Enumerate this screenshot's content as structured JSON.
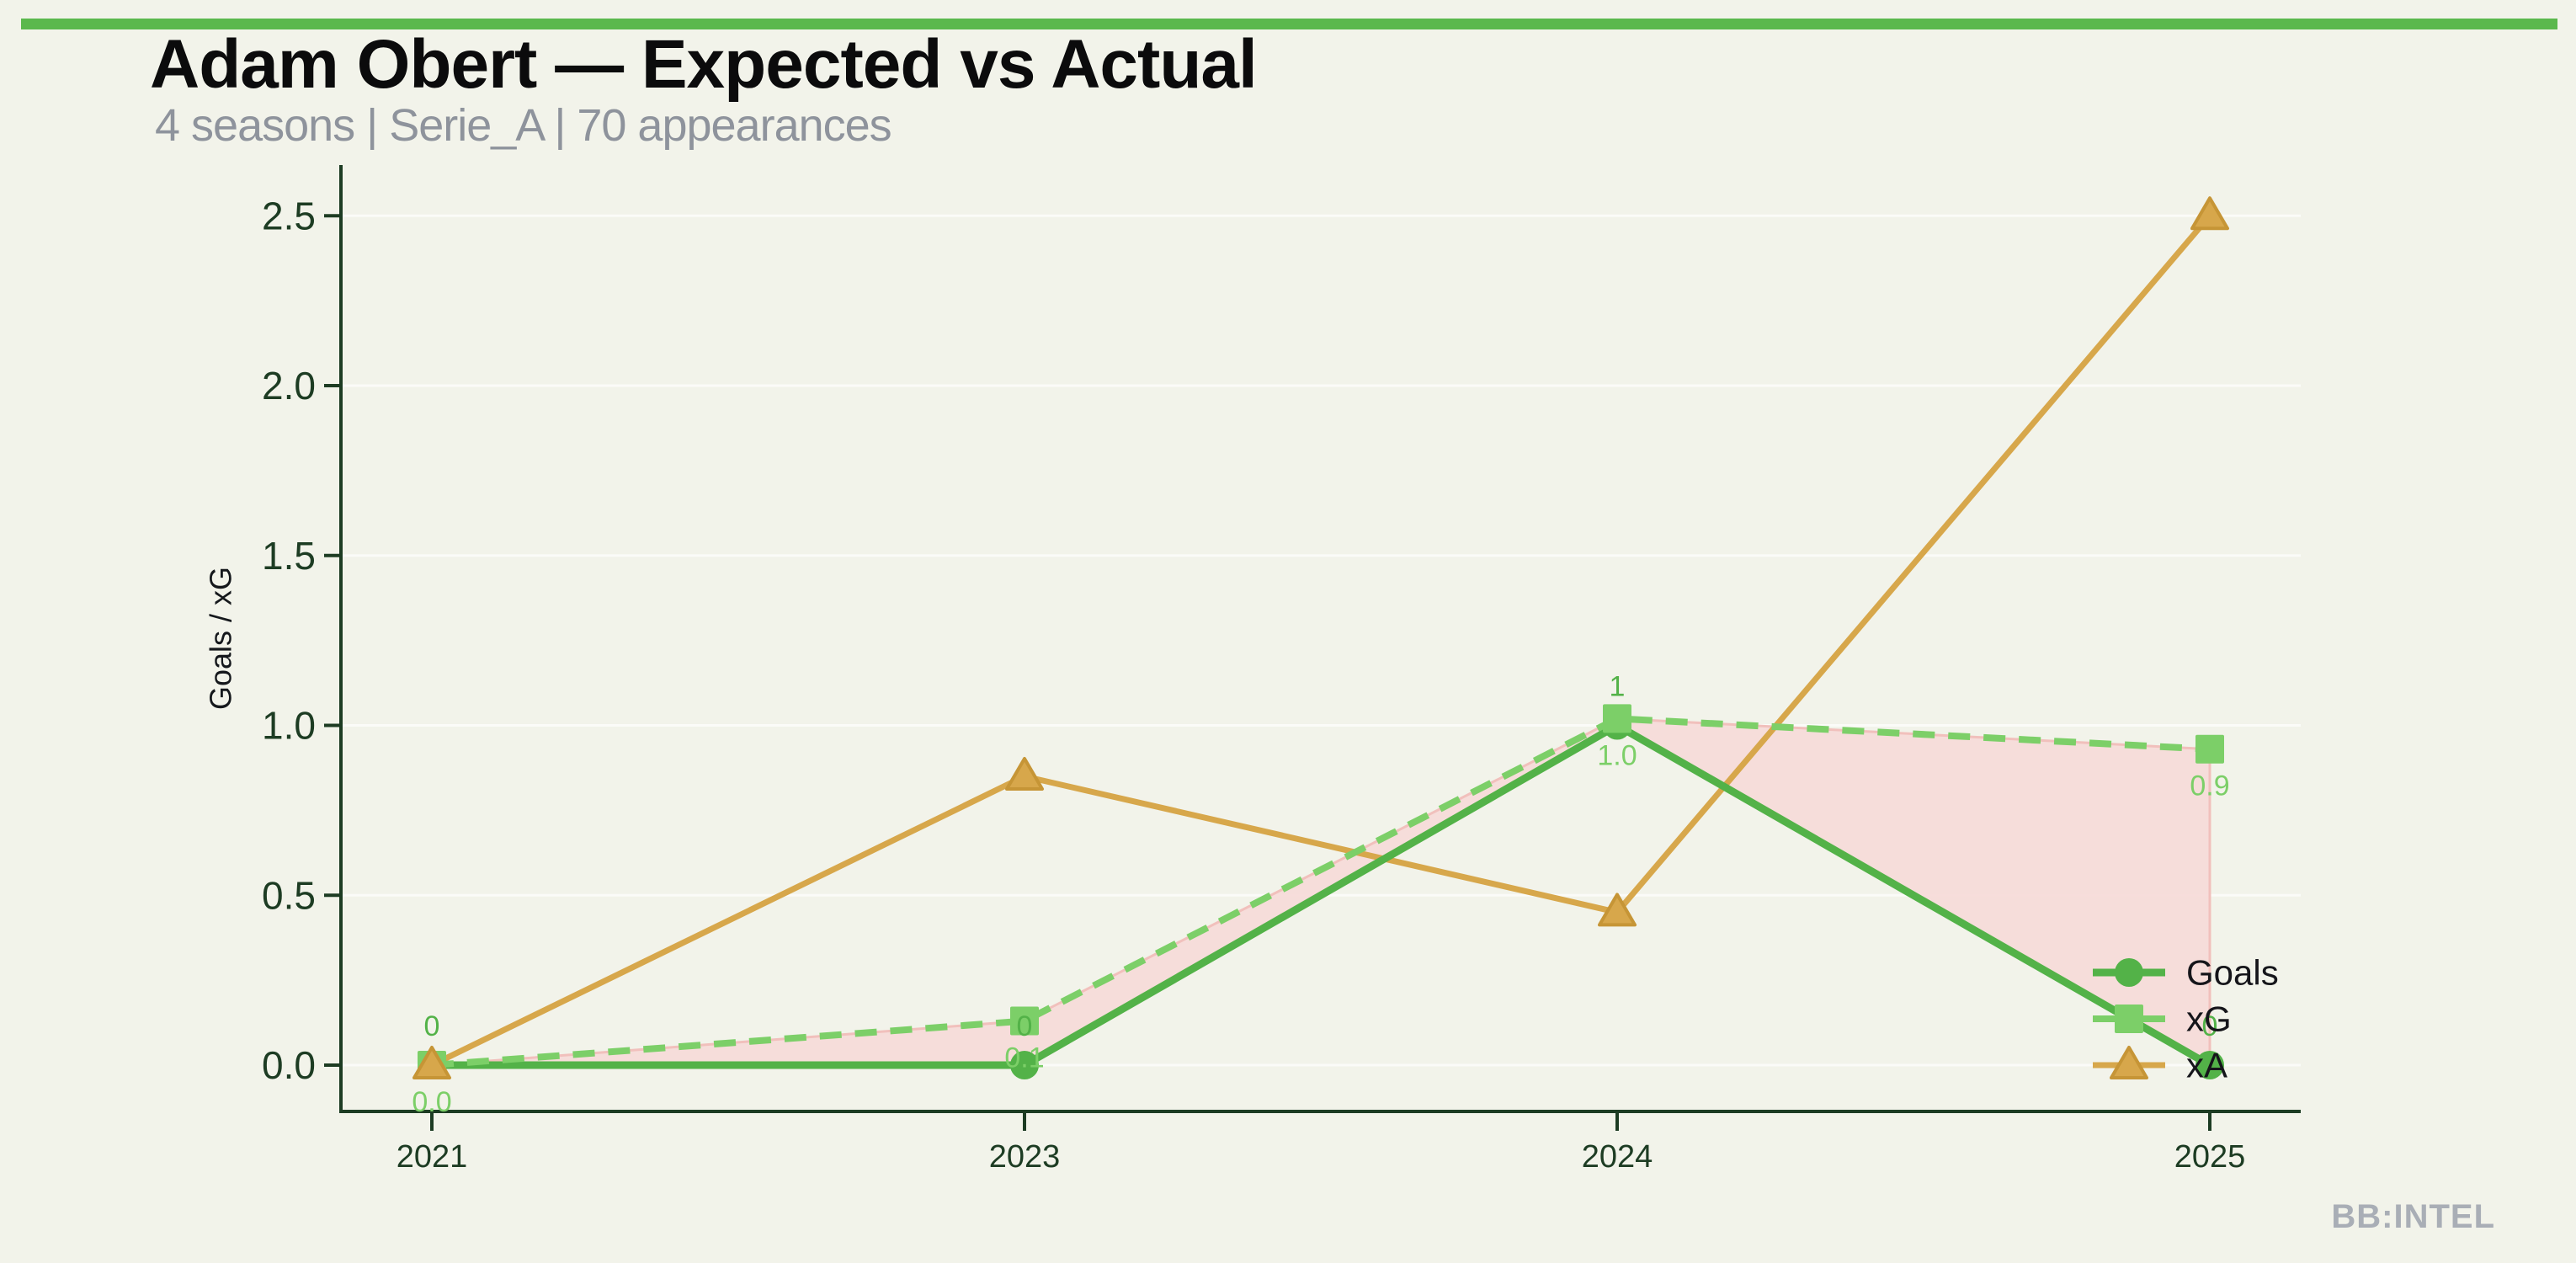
{
  "page": {
    "title": "Adam Obert — Expected vs Actual",
    "subtitle": "4 seasons | Serie_A | 70 appearances",
    "watermark": "BB:INTEL",
    "colors": {
      "background": "#f2f3ea",
      "accent_bar": "#5bb84d",
      "title_text": "#0b0b0c",
      "subtitle_text": "#8e939c",
      "watermark_text": "#a9aeb6",
      "axis": "#1d3c23",
      "grid": "rgba(255,255,255,0.65)"
    }
  },
  "chart_data": {
    "type": "line",
    "title": "Adam Obert — Expected vs Actual",
    "categories": [
      "2021",
      "2023",
      "2024",
      "2025"
    ],
    "series": [
      {
        "name": "Goals",
        "values": [
          0,
          0,
          1,
          0
        ],
        "point_labels": [
          "0",
          "0",
          "1",
          "0"
        ],
        "color": "#53b248",
        "marker": "circle",
        "line_style": "solid"
      },
      {
        "name": "xG",
        "values": [
          0.0,
          0.13,
          1.02,
          0.93
        ],
        "point_labels": [
          "0.0",
          "0.1",
          "1.0",
          "0.9"
        ],
        "color": "#7ccf68",
        "marker": "square",
        "line_style": "dashed"
      },
      {
        "name": "xA",
        "values": [
          0.0,
          0.85,
          0.45,
          2.5
        ],
        "point_labels": [],
        "color": "#d7a74b",
        "marker": "triangle",
        "marker_edge": "#c69536",
        "line_style": "solid"
      }
    ],
    "xlabel": "",
    "ylabel": "Goals / xG",
    "yticks": [
      0.0,
      0.5,
      1.0,
      1.5,
      2.0,
      2.5
    ],
    "ytick_labels": [
      "0.0",
      "0.5",
      "1.0",
      "1.5",
      "2.0",
      "2.5"
    ],
    "ylim": [
      0,
      2.6
    ],
    "grid": "faint-horizontal",
    "legend_position": "inside-right-bottom",
    "fill_between": {
      "series_a": "Goals",
      "series_b": "xG",
      "fill_color": "#f6dad8",
      "edge_color": "#f1c0bc"
    }
  }
}
